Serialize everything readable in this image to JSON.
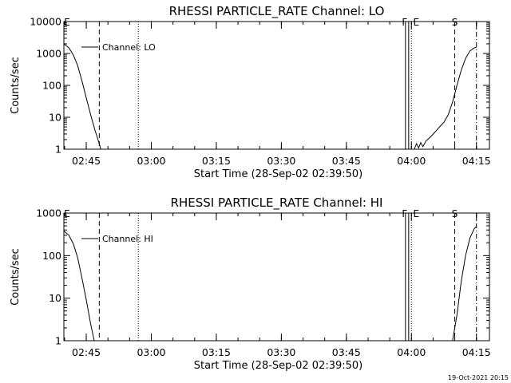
{
  "chart_data": [
    {
      "type": "line",
      "title": "RHESSI PARTICLE_RATE Channel: LO",
      "xlabel": "Start Time (28-Sep-02 02:39:50)",
      "ylabel": "Counts/sec",
      "yscale": "log",
      "ylim": [
        1,
        10000
      ],
      "y_ticks": [
        "1",
        "10",
        "100",
        "1000",
        "10000"
      ],
      "x_ticks": [
        "02:45",
        "03:00",
        "03:15",
        "03:30",
        "03:45",
        "04:00",
        "04:15"
      ],
      "legend": "Channel: LO",
      "flags": [
        {
          "text": "E",
          "time": "02:40"
        },
        {
          "text": "F",
          "time": "03:59"
        },
        {
          "text": "E",
          "time": "04:00"
        },
        {
          "text": "S",
          "time": "04:10"
        }
      ],
      "vlines": [
        {
          "time": "02:48",
          "style": "dashed"
        },
        {
          "time": "02:57",
          "style": "dotted"
        },
        {
          "time": "03:59",
          "style": "double"
        },
        {
          "time": "04:00",
          "style": "dotted"
        },
        {
          "time": "04:10",
          "style": "dashed"
        },
        {
          "time": "04:15",
          "style": "dashdot"
        }
      ],
      "series": [
        {
          "name": "Channel: LO",
          "segment": "pass-1",
          "x": [
            "02:39:50",
            "02:41:00",
            "02:42:00",
            "02:43:00",
            "02:44:00",
            "02:45:00",
            "02:46:00",
            "02:47:00",
            "02:48:00",
            "02:48:20"
          ],
          "values": [
            2000,
            1500,
            900,
            420,
            140,
            40,
            12,
            4,
            1.5,
            1
          ]
        },
        {
          "name": "Channel: LO",
          "segment": "pass-2",
          "x": [
            "04:00:40",
            "04:01:10",
            "04:01:40",
            "04:02:10",
            "04:02:40",
            "04:03:20",
            "04:04:30",
            "04:05:30",
            "04:06:30",
            "04:07:30",
            "04:08:30",
            "04:09:30",
            "04:10:30",
            "04:11:30",
            "04:12:30",
            "04:13:30",
            "04:14:30",
            "04:15:00"
          ],
          "values": [
            1,
            1.5,
            1.1,
            1.6,
            1.2,
            1.8,
            2.5,
            3.5,
            5,
            7,
            12,
            30,
            100,
            300,
            700,
            1200,
            1500,
            1550
          ]
        }
      ]
    },
    {
      "type": "line",
      "title": "RHESSI PARTICLE_RATE Channel: HI",
      "xlabel": "Start Time (28-Sep-02 02:39:50)",
      "ylabel": "Counts/sec",
      "yscale": "log",
      "ylim": [
        1,
        1000
      ],
      "y_ticks": [
        "1",
        "10",
        "100",
        "1000"
      ],
      "x_ticks": [
        "02:45",
        "03:00",
        "03:15",
        "03:30",
        "03:45",
        "04:00",
        "04:15"
      ],
      "legend": "Channel: HI",
      "flags": [
        {
          "text": "E",
          "time": "02:40"
        },
        {
          "text": "F",
          "time": "03:59"
        },
        {
          "text": "E",
          "time": "04:00"
        },
        {
          "text": "S",
          "time": "04:10"
        }
      ],
      "vlines": [
        {
          "time": "02:48",
          "style": "dashed"
        },
        {
          "time": "02:57",
          "style": "dotted"
        },
        {
          "time": "03:59",
          "style": "double"
        },
        {
          "time": "04:00",
          "style": "dotted"
        },
        {
          "time": "04:10",
          "style": "dashed"
        },
        {
          "time": "04:15",
          "style": "dashdot"
        }
      ],
      "series": [
        {
          "name": "Channel: HI",
          "segment": "pass-1",
          "x": [
            "02:39:50",
            "02:41:00",
            "02:42:00",
            "02:43:00",
            "02:44:00",
            "02:45:00",
            "02:46:00",
            "02:46:50"
          ],
          "values": [
            380,
            300,
            190,
            90,
            30,
            9,
            2.5,
            1
          ]
        },
        {
          "name": "Channel: HI",
          "segment": "pass-2",
          "x": [
            "04:09:30",
            "04:10:30",
            "04:11:30",
            "04:12:30",
            "04:13:30",
            "04:14:30",
            "04:15:00"
          ],
          "values": [
            1,
            4,
            25,
            100,
            260,
            430,
            480
          ]
        }
      ]
    }
  ],
  "footer": {
    "timestamp": "19-Oct-2021 20:15"
  }
}
